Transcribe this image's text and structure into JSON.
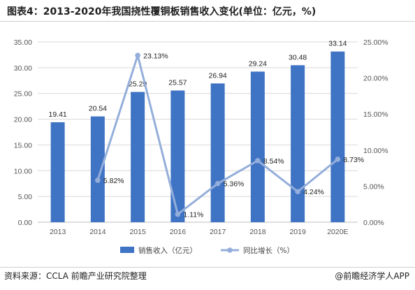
{
  "header": {
    "title": "图表4：2013-2020年我国挠性覆铜板销售收入变化(单位：亿元，%)"
  },
  "footer": {
    "source": "资料来源：CCLA 前瞻产业研究院整理",
    "credit": "@前瞻经济学人APP"
  },
  "colors": {
    "bar": "#3f73c4",
    "line": "#94aedb",
    "grid": "#d9d9d9",
    "axis": "#bfbfbf"
  },
  "chart_data": {
    "type": "bar",
    "categories": [
      "2013",
      "2014",
      "2015",
      "2016",
      "2017",
      "2018",
      "2019",
      "2020E"
    ],
    "series": [
      {
        "name": "销售收入（亿元）",
        "type": "bar",
        "axis": "left",
        "values": [
          19.41,
          20.54,
          25.29,
          25.57,
          26.94,
          29.24,
          30.48,
          33.14
        ],
        "labels": [
          "19.41",
          "20.54",
          "25.29",
          "25.57",
          "26.94",
          "29.24",
          "30.48",
          "33.14"
        ]
      },
      {
        "name": "同比增长（%）",
        "type": "line",
        "axis": "right",
        "values": [
          null,
          5.82,
          23.13,
          1.11,
          5.36,
          8.54,
          4.24,
          8.73
        ],
        "labels": [
          "",
          "5.82%",
          "23.13%",
          "1.11%",
          "5.36%",
          "8.54%",
          "4.24%",
          "8.73%"
        ]
      }
    ],
    "yleft": {
      "range": [
        0,
        35
      ],
      "ticks": [
        "0.00",
        "5.00",
        "10.00",
        "15.00",
        "20.00",
        "25.00",
        "30.00",
        "35.00"
      ]
    },
    "yright": {
      "range": [
        0,
        25
      ],
      "ticks": [
        "0.00%",
        "5.00%",
        "10.00%",
        "15.00%",
        "20.00%",
        "25.00%"
      ]
    },
    "grid": true,
    "legend": "bottom"
  }
}
